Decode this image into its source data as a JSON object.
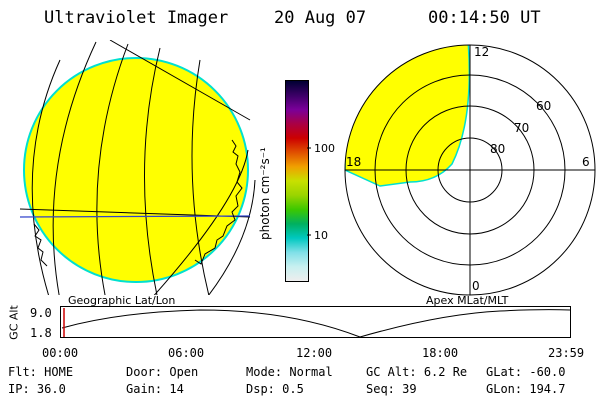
{
  "header": {
    "instrument": "Ultraviolet Imager",
    "date": "20 Aug 07",
    "time": "00:14:50 UT"
  },
  "colorbar": {
    "label": "photon cm⁻²s⁻¹",
    "ticks": [
      "100",
      "10"
    ],
    "stops": [
      "#000033",
      "#3b0066",
      "#7a0099",
      "#aa0044",
      "#cc0000",
      "#e05000",
      "#f0a000",
      "#c8e000",
      "#9ad400",
      "#3cc800",
      "#00b060",
      "#00c8c0",
      "#80e0e8",
      "#c8f0f0",
      "#eeeeee"
    ]
  },
  "panels": {
    "left_label": "Geographic Lat/Lon",
    "right_label": "Apex MLat/MLT",
    "fill_color": "#ffff00",
    "edge_color": "#00e0d0"
  },
  "polar": {
    "mlt_labels": [
      "12",
      "18",
      "6",
      "0"
    ],
    "lat_labels": [
      "60",
      "70",
      "80"
    ]
  },
  "altitude_plot": {
    "ylabel": "GC Alt",
    "yticks": [
      "9.0",
      "1.8"
    ],
    "xticks": [
      "00:00",
      "06:00",
      "12:00",
      "18:00",
      "23:59"
    ],
    "current_marker_color": "#cc0000"
  },
  "info": {
    "row1": [
      {
        "label": "Flt:",
        "value": "HOME"
      },
      {
        "label": "Door:",
        "value": "Open"
      },
      {
        "label": "Mode:",
        "value": "Normal"
      },
      {
        "label": "GC Alt:",
        "value": "6.2 Re"
      },
      {
        "label": "GLat:",
        "value": "-60.0"
      }
    ],
    "row2": [
      {
        "label": "IP:",
        "value": "36.0"
      },
      {
        "label": "Gain:",
        "value": "14"
      },
      {
        "label": "Dsp:",
        "value": "0.5"
      },
      {
        "label": "Seq:",
        "value": "39"
      },
      {
        "label": "GLon:",
        "value": "194.7"
      }
    ]
  }
}
